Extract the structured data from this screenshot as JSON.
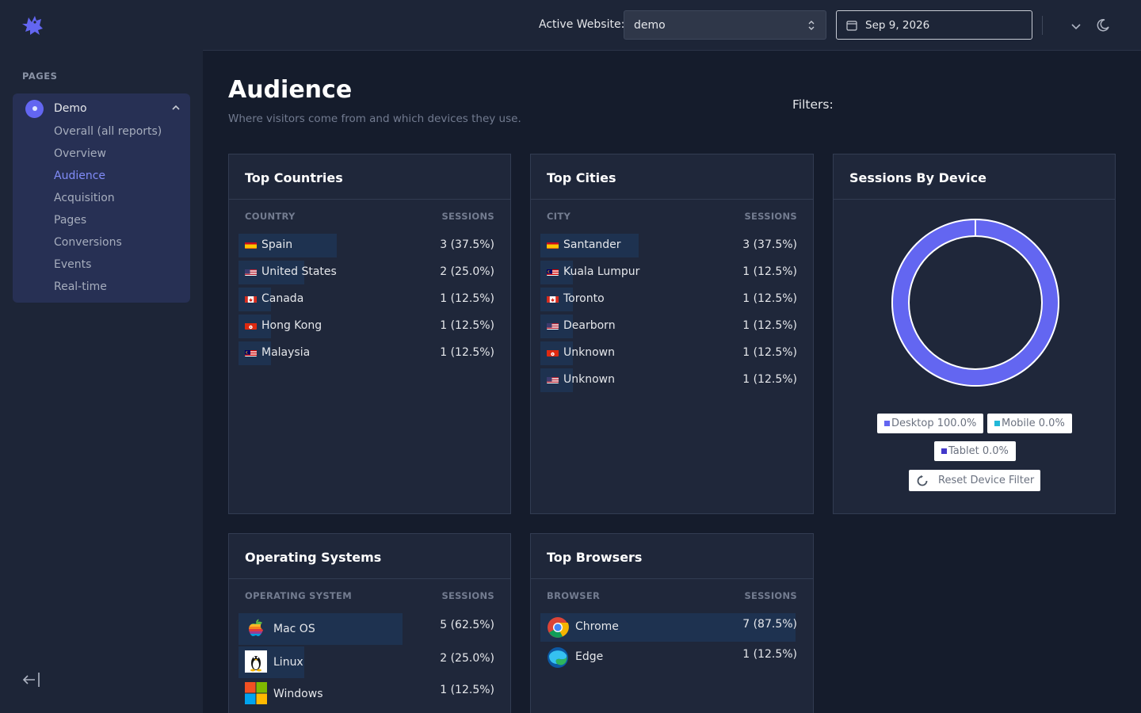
{
  "sidebar": {
    "section_label": "PAGES",
    "group": {
      "label": "Demo"
    },
    "items": [
      {
        "label": "Overall (all reports)"
      },
      {
        "label": "Overview"
      },
      {
        "label": "Audience"
      },
      {
        "label": "Acquisition"
      },
      {
        "label": "Pages"
      },
      {
        "label": "Conversions"
      },
      {
        "label": "Events"
      },
      {
        "label": "Real-time"
      }
    ],
    "active_item": "Audience"
  },
  "header": {
    "active_website_label": "Active Website:",
    "active_website_value": "demo",
    "date_value": "Sep 9, 2026"
  },
  "page": {
    "title": "Audience",
    "subtitle": "Where visitors come from and which devices they use.",
    "filters_label": "Filters:"
  },
  "countries": {
    "title": "Top Countries",
    "col_name": "COUNTRY",
    "col_value": "SESSIONS",
    "rows": [
      {
        "label": "Spain",
        "value": "3 (37.5%)",
        "flag": "es",
        "share": 0.375
      },
      {
        "label": "United States",
        "value": "2 (25.0%)",
        "flag": "us",
        "share": 0.25
      },
      {
        "label": "Canada",
        "value": "1 (12.5%)",
        "flag": "ca",
        "share": 0.125
      },
      {
        "label": "Hong Kong",
        "value": "1 (12.5%)",
        "flag": "hk",
        "share": 0.125
      },
      {
        "label": "Malaysia",
        "value": "1 (12.5%)",
        "flag": "my",
        "share": 0.125
      }
    ]
  },
  "cities": {
    "title": "Top Cities",
    "col_name": "CITY",
    "col_value": "SESSIONS",
    "rows": [
      {
        "label": "Santander",
        "value": "3 (37.5%)",
        "flag": "es",
        "share": 0.375
      },
      {
        "label": "Kuala Lumpur",
        "value": "1 (12.5%)",
        "flag": "my",
        "share": 0.125
      },
      {
        "label": "Toronto",
        "value": "1 (12.5%)",
        "flag": "ca",
        "share": 0.125
      },
      {
        "label": "Dearborn",
        "value": "1 (12.5%)",
        "flag": "us",
        "share": 0.125
      },
      {
        "label": "Unknown",
        "value": "1 (12.5%)",
        "flag": "hk",
        "share": 0.125
      },
      {
        "label": "Unknown",
        "value": "1 (12.5%)",
        "flag": "us",
        "share": 0.125
      }
    ]
  },
  "devices": {
    "title": "Sessions By Device",
    "legend": [
      {
        "label": "Desktop 100.0%",
        "color": "#6366f1"
      },
      {
        "label": "Mobile 0.0%",
        "color": "#22b8d8"
      },
      {
        "label": "Tablet 0.0%",
        "color": "#4338ca"
      }
    ],
    "reset_label": "Reset Device Filter"
  },
  "os": {
    "title": "Operating Systems",
    "col_name": "OPERATING SYSTEM",
    "col_value": "SESSIONS",
    "rows": [
      {
        "label": "Mac OS",
        "value": "5 (62.5%)",
        "icon": "apple-icon",
        "share": 0.625
      },
      {
        "label": "Linux",
        "value": "2 (25.0%)",
        "icon": "linux-tux-icon",
        "share": 0.25
      },
      {
        "label": "Windows",
        "value": "1 (12.5%)",
        "icon": "windows-icon",
        "share": 0.125
      }
    ]
  },
  "browsers": {
    "title": "Top Browsers",
    "col_name": "BROWSER",
    "col_value": "SESSIONS",
    "rows": [
      {
        "label": "Chrome",
        "value": "7 (87.5%)",
        "icon": "chrome-icon",
        "share": 0.875
      },
      {
        "label": "Edge",
        "value": "1 (12.5%)",
        "icon": "edge-icon",
        "share": 0.125
      }
    ]
  },
  "chart_data": {
    "type": "pie",
    "categories": [
      "Desktop",
      "Mobile",
      "Tablet"
    ],
    "values": [
      100.0,
      0.0,
      0.0
    ],
    "title": "Sessions By Device"
  }
}
